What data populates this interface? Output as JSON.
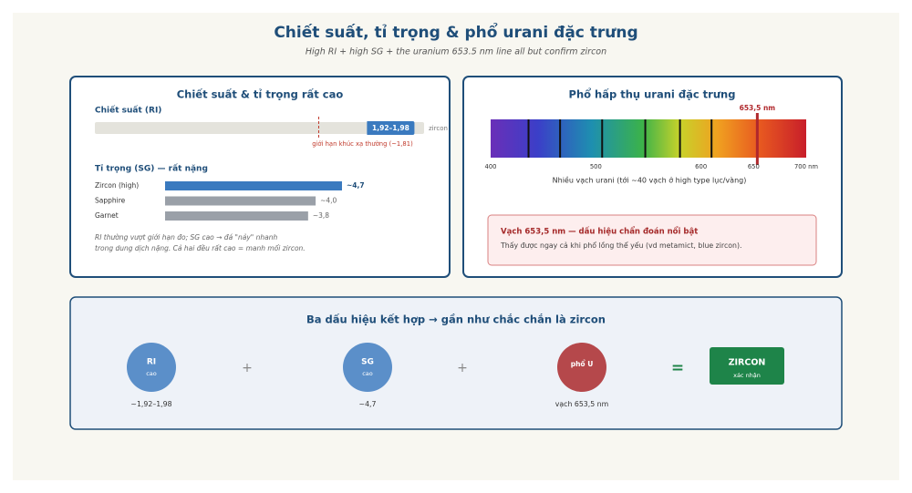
{
  "header": {
    "title": "Chiết suất, tỉ trọng & phổ urani đặc trưng",
    "subtitle": "High RI + high SG + the uranium 653.5 nm line all but confirm zircon"
  },
  "left_panel": {
    "title": "Chiết suất & tỉ trọng rất cao",
    "ri": {
      "label": "Chiết suất (RI)",
      "xlim": [
        1.3,
        2.05
      ],
      "range": [
        1.92,
        1.98
      ],
      "range_label": "1,92–1,98",
      "color": "#3a7abf",
      "end_label": "zircon",
      "limit": 1.81,
      "limit_label": "giới hạn khúc xạ thường (~1,81)"
    },
    "sg": {
      "label": "Tỉ trọng (SG) — rất nặng",
      "xlim": [
        0,
        5.5
      ],
      "categories": [
        "Zircon (high)",
        "Sapphire",
        "Garnet"
      ],
      "values": [
        4.7,
        4.0,
        3.8
      ],
      "value_labels": [
        "~4,7",
        "~4,0",
        "~3,8"
      ],
      "colors": [
        "#3a7abf",
        "#9aa0a8",
        "#9aa0a8"
      ]
    },
    "note": [
      "RI thường vượt giới hạn đo; SG cao → đá \"nảy\" nhanh",
      "trong dung dịch nặng. Cả hai đều rất cao = manh mối zircon."
    ]
  },
  "right_panel": {
    "title": "Phổ hấp thụ urani đặc trưng",
    "xlim": [
      400,
      700
    ],
    "xticks": [
      400,
      500,
      600,
      650,
      {
        "value": 700,
        "label": "700 nm"
      }
    ],
    "lines": [
      436,
      466,
      506,
      547,
      580,
      610
    ],
    "marker": 653.5,
    "marker_label": "653,5 nm",
    "caption": "Nhiều vạch urani (tới ~40 vạch ở high type lục/vàng)",
    "callout": {
      "title": "Vạch 653,5 nm — dấu hiệu chẩn đoán nổi bật",
      "text": "Thấy được ngay cả khi phổ lồng thể yếu (vd metamict, blue zircon)."
    }
  },
  "bottom_panel": {
    "title": "Ba dấu hiệu kết hợp → gần như chắc chắn là zircon",
    "items": [
      {
        "label": "RI",
        "sublabel": "cao",
        "caption": "~1,92–1,98",
        "color": "#5b8fc9"
      },
      {
        "label": "SG",
        "sublabel": "cao",
        "caption": "~4,7",
        "color": "#5b8fc9"
      },
      {
        "label": "phổ U",
        "caption": "vạch 653,5 nm",
        "color": "#b5484b"
      }
    ],
    "operators": [
      "+",
      "+",
      "="
    ],
    "result": {
      "label": "ZIRCON",
      "sublabel": "xác nhận",
      "color": "#1e8449"
    }
  }
}
